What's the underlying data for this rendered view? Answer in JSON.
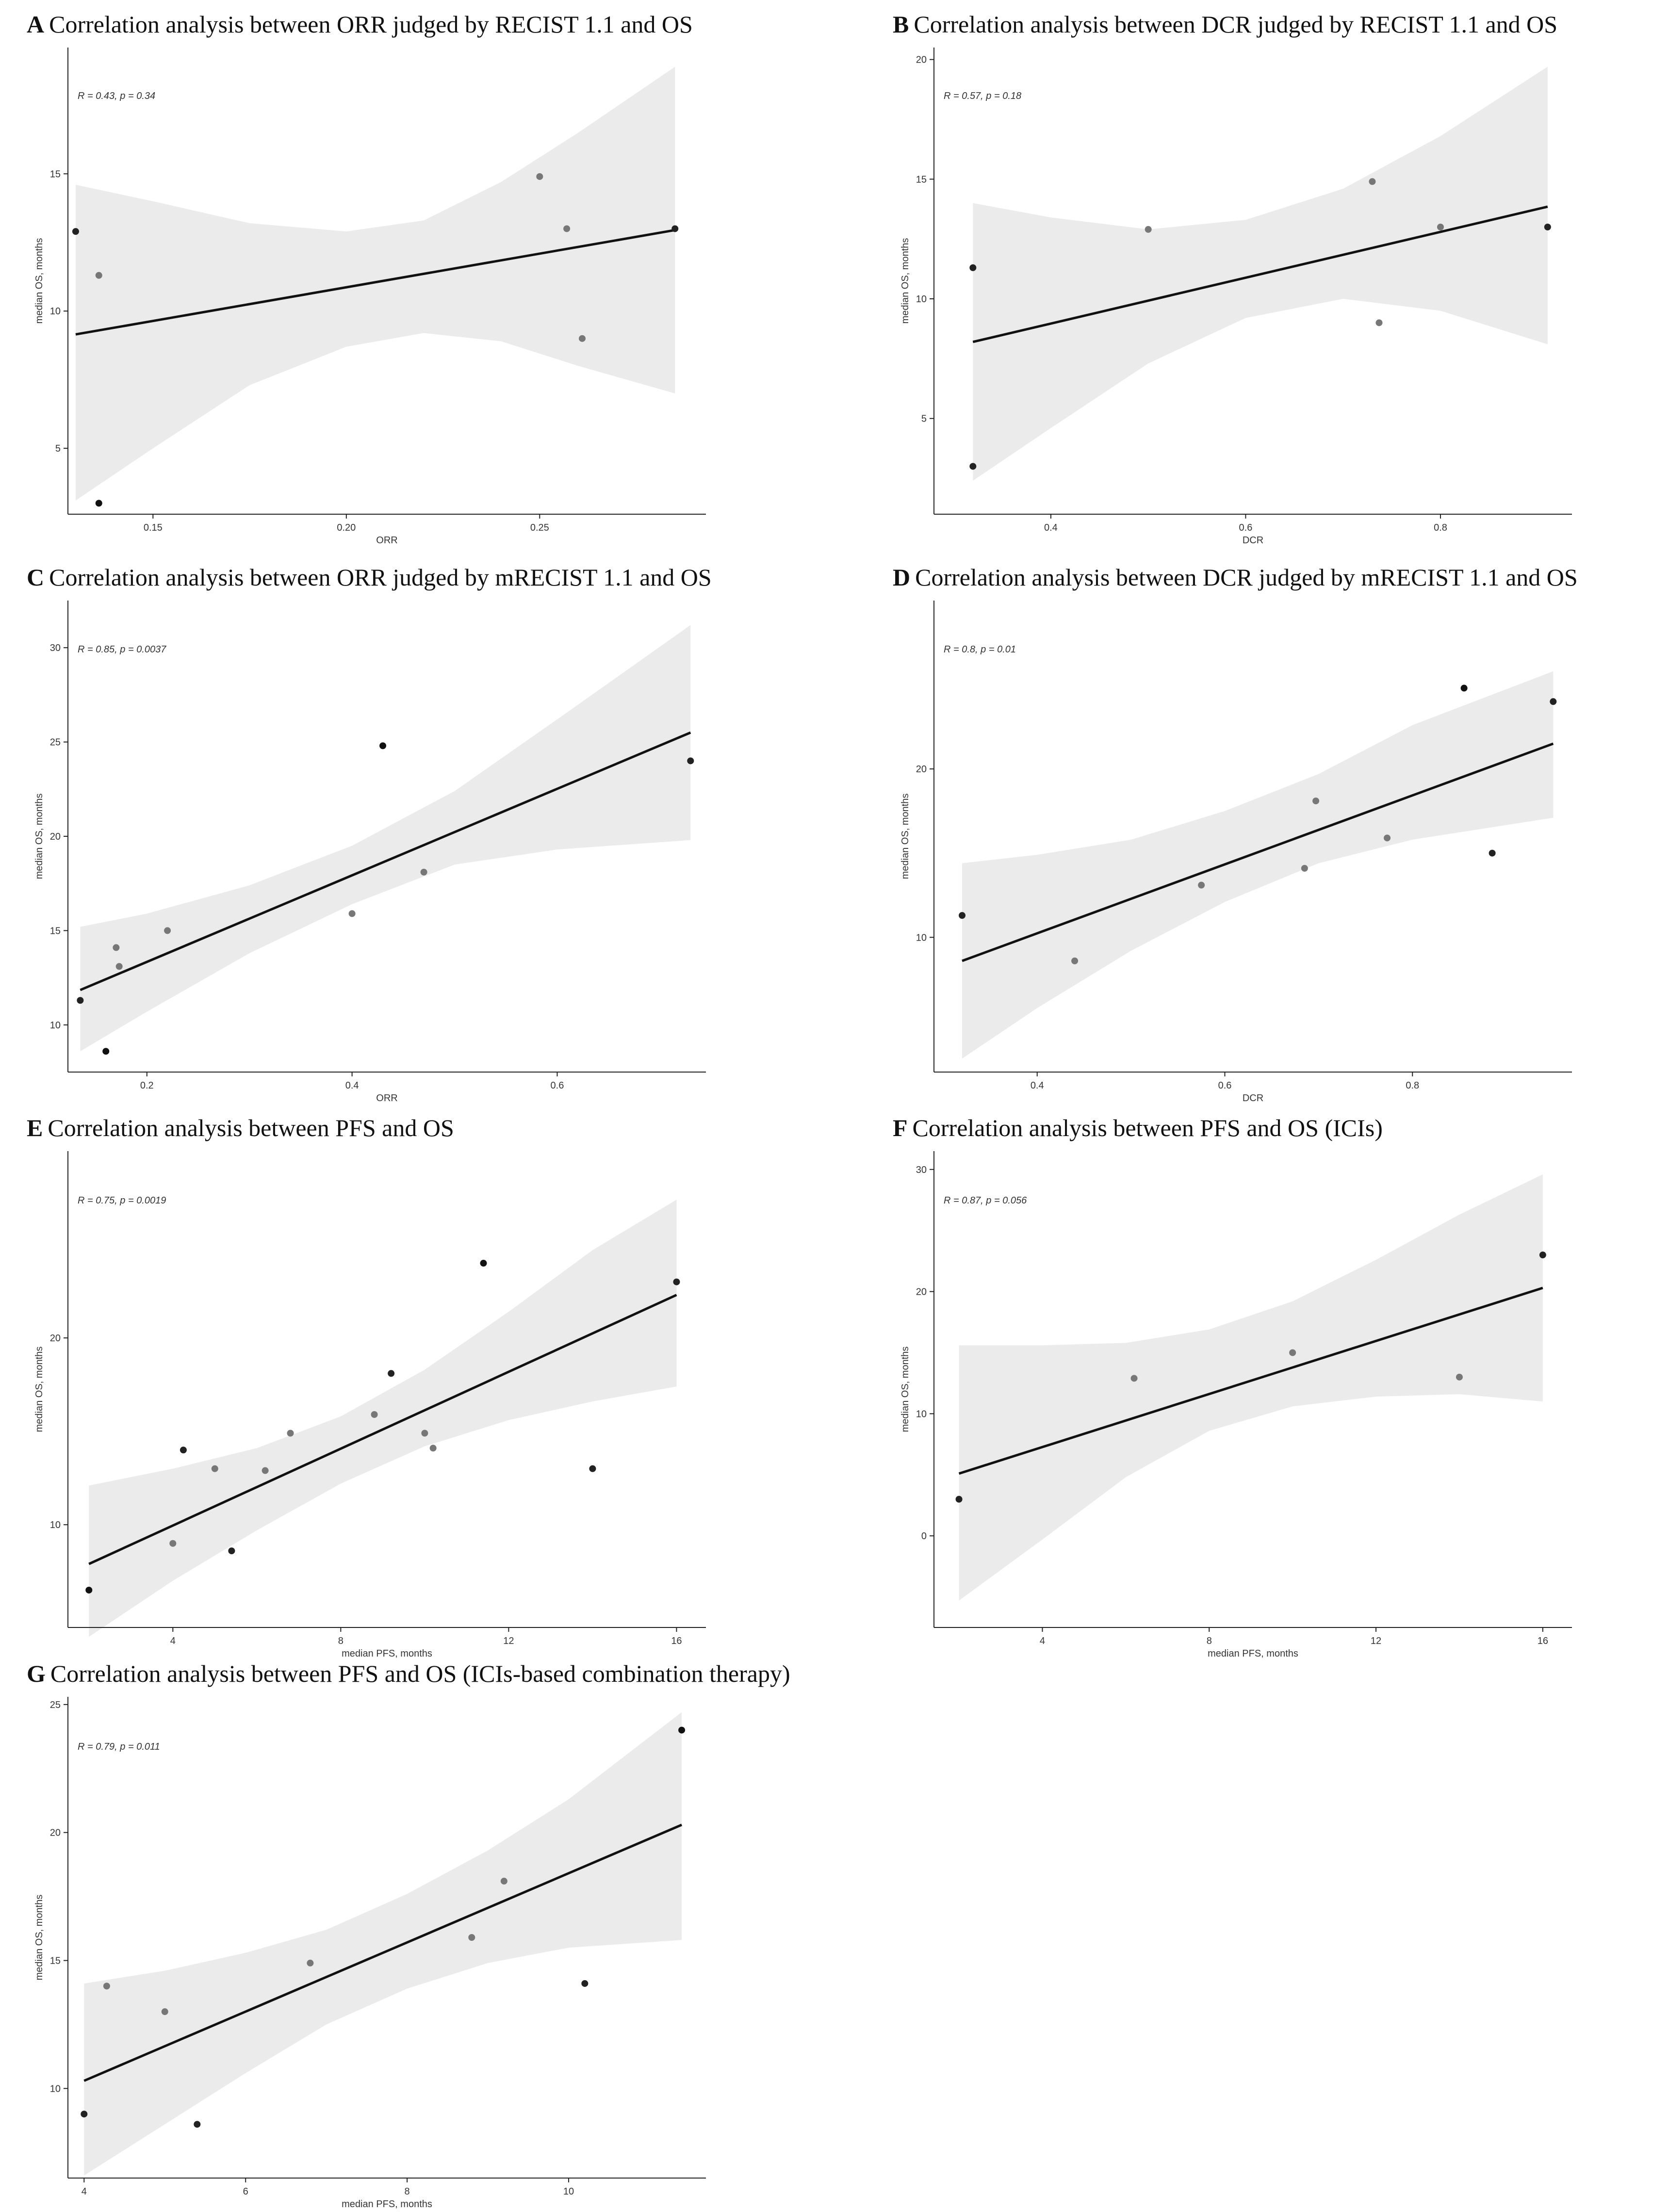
{
  "chart_data": [
    {
      "type": "scatter",
      "panel": "A",
      "title": "Correlation analysis between ORR judged by RECIST 1.1 and OS",
      "xlabel": "ORR",
      "ylabel": "median OS, months",
      "xlim": [
        0.128,
        0.293
      ],
      "ylim": [
        2.6,
        19.6
      ],
      "xticks": [
        0.15,
        0.2,
        0.25
      ],
      "xtick_labels": [
        "0.15",
        "0.20",
        "0.25"
      ],
      "yticks": [
        5,
        10,
        15
      ],
      "ytick_labels": [
        "5",
        "10",
        "15"
      ],
      "annotation": "R = 0.43, p = 0.34",
      "points": [
        {
          "x": 0.13,
          "y": 12.9,
          "shade": "#222222"
        },
        {
          "x": 0.136,
          "y": 11.3,
          "shade": "#777777"
        },
        {
          "x": 0.136,
          "y": 3.0,
          "shade": "#111111"
        },
        {
          "x": 0.25,
          "y": 14.9,
          "shade": "#777777"
        },
        {
          "x": 0.257,
          "y": 13.0,
          "shade": "#777777"
        },
        {
          "x": 0.261,
          "y": 9.0,
          "shade": "#777777"
        },
        {
          "x": 0.285,
          "y": 13.0,
          "shade": "#222222"
        }
      ],
      "fit": [
        {
          "x": 0.13,
          "y": 9.15
        },
        {
          "x": 0.285,
          "y": 12.95
        }
      ],
      "band": [
        {
          "x": 0.13,
          "lo": 3.1,
          "hi": 14.6
        },
        {
          "x": 0.15,
          "lo": 5.0,
          "hi": 14.0
        },
        {
          "x": 0.175,
          "lo": 7.3,
          "hi": 13.2
        },
        {
          "x": 0.2,
          "lo": 8.7,
          "hi": 12.9
        },
        {
          "x": 0.22,
          "lo": 9.2,
          "hi": 13.3
        },
        {
          "x": 0.24,
          "lo": 8.9,
          "hi": 14.7
        },
        {
          "x": 0.26,
          "lo": 8.0,
          "hi": 16.5
        },
        {
          "x": 0.285,
          "lo": 7.0,
          "hi": 18.9
        }
      ]
    },
    {
      "type": "scatter",
      "panel": "B",
      "title": "Correlation analysis between DCR judged by RECIST 1.1 and OS",
      "xlabel": "DCR",
      "ylabel": "median OS, months",
      "xlim": [
        0.28,
        0.935
      ],
      "ylim": [
        1.0,
        20.5
      ],
      "xticks": [
        0.4,
        0.6,
        0.8
      ],
      "xtick_labels": [
        "0.4",
        "0.6",
        "0.8"
      ],
      "yticks": [
        5,
        10,
        15,
        20
      ],
      "ytick_labels": [
        "5",
        "10",
        "15",
        "20"
      ],
      "annotation": "R = 0.57, p = 0.18",
      "points": [
        {
          "x": 0.32,
          "y": 11.3,
          "shade": "#222222"
        },
        {
          "x": 0.32,
          "y": 3.0,
          "shade": "#222222"
        },
        {
          "x": 0.5,
          "y": 12.9,
          "shade": "#777777"
        },
        {
          "x": 0.73,
          "y": 14.9,
          "shade": "#777777"
        },
        {
          "x": 0.737,
          "y": 9.0,
          "shade": "#777777"
        },
        {
          "x": 0.8,
          "y": 13.0,
          "shade": "#777777"
        },
        {
          "x": 0.91,
          "y": 13.0,
          "shade": "#222222"
        }
      ],
      "fit": [
        {
          "x": 0.32,
          "y": 8.2
        },
        {
          "x": 0.91,
          "y": 13.85
        }
      ],
      "band": [
        {
          "x": 0.32,
          "lo": 2.4,
          "hi": 14.0
        },
        {
          "x": 0.4,
          "lo": 4.6,
          "hi": 13.4
        },
        {
          "x": 0.5,
          "lo": 7.3,
          "hi": 12.9
        },
        {
          "x": 0.6,
          "lo": 9.2,
          "hi": 13.3
        },
        {
          "x": 0.7,
          "lo": 10.0,
          "hi": 14.6
        },
        {
          "x": 0.8,
          "lo": 9.5,
          "hi": 16.8
        },
        {
          "x": 0.91,
          "lo": 8.1,
          "hi": 19.7
        }
      ]
    },
    {
      "type": "scatter",
      "panel": "C",
      "title": "Correlation analysis between ORR judged by mRECIST 1.1 and OS",
      "xlabel": "ORR",
      "ylabel": "median OS, months",
      "xlim": [
        0.123,
        0.745
      ],
      "ylim": [
        7.5,
        32.5
      ],
      "xticks": [
        0.2,
        0.4,
        0.6
      ],
      "xtick_labels": [
        "0.2",
        "0.4",
        "0.6"
      ],
      "yticks": [
        10,
        15,
        20,
        25,
        30
      ],
      "ytick_labels": [
        "10",
        "15",
        "20",
        "25",
        "30"
      ],
      "annotation": "R = 0.85, p = 0.0037",
      "points": [
        {
          "x": 0.135,
          "y": 11.3,
          "shade": "#222222"
        },
        {
          "x": 0.16,
          "y": 8.6,
          "shade": "#111111"
        },
        {
          "x": 0.17,
          "y": 14.1,
          "shade": "#777777"
        },
        {
          "x": 0.173,
          "y": 13.1,
          "shade": "#777777"
        },
        {
          "x": 0.22,
          "y": 15.0,
          "shade": "#777777"
        },
        {
          "x": 0.4,
          "y": 15.9,
          "shade": "#777777"
        },
        {
          "x": 0.43,
          "y": 24.8,
          "shade": "#111111"
        },
        {
          "x": 0.47,
          "y": 18.1,
          "shade": "#777777"
        },
        {
          "x": 0.73,
          "y": 24.0,
          "shade": "#222222"
        }
      ],
      "fit": [
        {
          "x": 0.135,
          "y": 11.85
        },
        {
          "x": 0.73,
          "y": 25.5
        }
      ],
      "band": [
        {
          "x": 0.135,
          "lo": 8.6,
          "hi": 15.2
        },
        {
          "x": 0.2,
          "lo": 10.7,
          "hi": 15.9
        },
        {
          "x": 0.3,
          "lo": 13.8,
          "hi": 17.4
        },
        {
          "x": 0.4,
          "lo": 16.4,
          "hi": 19.5
        },
        {
          "x": 0.5,
          "lo": 18.5,
          "hi": 22.4
        },
        {
          "x": 0.6,
          "lo": 19.3,
          "hi": 26.2
        },
        {
          "x": 0.73,
          "lo": 19.8,
          "hi": 31.2
        }
      ]
    },
    {
      "type": "scatter",
      "panel": "D",
      "title": "Correlation analysis between DCR judged by mRECIST 1.1 and OS",
      "xlabel": "DCR",
      "ylabel": "median OS, months",
      "xlim": [
        0.29,
        0.97
      ],
      "ylim": [
        2.0,
        30.0
      ],
      "xticks": [
        0.4,
        0.6,
        0.8
      ],
      "xtick_labels": [
        "0.4",
        "0.6",
        "0.8"
      ],
      "yticks": [
        10,
        20
      ],
      "ytick_labels": [
        "10",
        "20"
      ],
      "annotation": "R = 0.8, p = 0.01",
      "points": [
        {
          "x": 0.32,
          "y": 11.3,
          "shade": "#222222"
        },
        {
          "x": 0.44,
          "y": 8.6,
          "shade": "#777777"
        },
        {
          "x": 0.575,
          "y": 13.1,
          "shade": "#777777"
        },
        {
          "x": 0.685,
          "y": 14.1,
          "shade": "#777777"
        },
        {
          "x": 0.697,
          "y": 18.1,
          "shade": "#777777"
        },
        {
          "x": 0.773,
          "y": 15.9,
          "shade": "#777777"
        },
        {
          "x": 0.855,
          "y": 24.8,
          "shade": "#111111"
        },
        {
          "x": 0.885,
          "y": 15.0,
          "shade": "#222222"
        },
        {
          "x": 0.95,
          "y": 24.0,
          "shade": "#222222"
        }
      ],
      "fit": [
        {
          "x": 0.32,
          "y": 8.6
        },
        {
          "x": 0.95,
          "y": 21.5
        }
      ],
      "band": [
        {
          "x": 0.32,
          "lo": 2.8,
          "hi": 14.4
        },
        {
          "x": 0.4,
          "lo": 5.8,
          "hi": 14.9
        },
        {
          "x": 0.5,
          "lo": 9.2,
          "hi": 15.8
        },
        {
          "x": 0.6,
          "lo": 12.1,
          "hi": 17.5
        },
        {
          "x": 0.7,
          "lo": 14.4,
          "hi": 19.7
        },
        {
          "x": 0.8,
          "lo": 15.8,
          "hi": 22.6
        },
        {
          "x": 0.95,
          "lo": 17.1,
          "hi": 25.8
        }
      ]
    },
    {
      "type": "scatter",
      "panel": "E",
      "title": "Correlation analysis between PFS and OS",
      "xlabel": "median PFS, months",
      "ylabel": "median OS, months",
      "xlim": [
        1.5,
        16.7
      ],
      "ylim": [
        4.5,
        30.0
      ],
      "xticks": [
        4,
        8,
        12,
        16
      ],
      "xtick_labels": [
        "4",
        "8",
        "12",
        "16"
      ],
      "yticks": [
        10,
        20
      ],
      "ytick_labels": [
        "10",
        "20"
      ],
      "annotation": "R = 0.75, p = 0.0019",
      "points": [
        {
          "x": 2.0,
          "y": 6.5,
          "shade": "#111111"
        },
        {
          "x": 4.0,
          "y": 9.0,
          "shade": "#777777"
        },
        {
          "x": 4.25,
          "y": 14.0,
          "shade": "#222222"
        },
        {
          "x": 5.0,
          "y": 13.0,
          "shade": "#777777"
        },
        {
          "x": 5.4,
          "y": 8.6,
          "shade": "#222222"
        },
        {
          "x": 6.2,
          "y": 12.9,
          "shade": "#777777"
        },
        {
          "x": 6.8,
          "y": 14.9,
          "shade": "#777777"
        },
        {
          "x": 8.8,
          "y": 15.9,
          "shade": "#777777"
        },
        {
          "x": 9.2,
          "y": 18.1,
          "shade": "#222222"
        },
        {
          "x": 10.0,
          "y": 14.9,
          "shade": "#777777"
        },
        {
          "x": 10.2,
          "y": 14.1,
          "shade": "#777777"
        },
        {
          "x": 11.4,
          "y": 24.0,
          "shade": "#111111"
        },
        {
          "x": 14.0,
          "y": 13.0,
          "shade": "#222222"
        },
        {
          "x": 16.0,
          "y": 23.0,
          "shade": "#222222"
        }
      ],
      "fit": [
        {
          "x": 2.0,
          "y": 7.9
        },
        {
          "x": 16.0,
          "y": 22.3
        }
      ],
      "band": [
        {
          "x": 2.0,
          "lo": 4.0,
          "hi": 12.1
        },
        {
          "x": 4.0,
          "lo": 7.0,
          "hi": 13.0
        },
        {
          "x": 6.0,
          "lo": 9.7,
          "hi": 14.1
        },
        {
          "x": 8.0,
          "lo": 12.2,
          "hi": 15.8
        },
        {
          "x": 10.0,
          "lo": 14.2,
          "hi": 18.3
        },
        {
          "x": 12.0,
          "lo": 15.6,
          "hi": 21.4
        },
        {
          "x": 14.0,
          "lo": 16.6,
          "hi": 24.7
        },
        {
          "x": 16.0,
          "lo": 17.4,
          "hi": 27.4
        }
      ]
    },
    {
      "type": "scatter",
      "panel": "F",
      "title": "Correlation analysis between PFS and OS (ICIs)",
      "xlabel": "median PFS, months",
      "ylabel": "median OS, months",
      "xlim": [
        1.4,
        16.7
      ],
      "ylim": [
        -7.5,
        31.5
      ],
      "xticks": [
        4,
        8,
        12,
        16
      ],
      "xtick_labels": [
        "4",
        "8",
        "12",
        "16"
      ],
      "yticks": [
        0,
        10,
        20,
        30
      ],
      "ytick_labels": [
        "0",
        "10",
        "20",
        "30"
      ],
      "annotation": "R = 0.87, p = 0.056",
      "points": [
        {
          "x": 2.0,
          "y": 3.0,
          "shade": "#222222"
        },
        {
          "x": 6.2,
          "y": 12.9,
          "shade": "#777777"
        },
        {
          "x": 10.0,
          "y": 15.0,
          "shade": "#777777"
        },
        {
          "x": 14.0,
          "y": 13.0,
          "shade": "#777777"
        },
        {
          "x": 16.0,
          "y": 23.0,
          "shade": "#222222"
        }
      ],
      "fit": [
        {
          "x": 2.0,
          "y": 5.1
        },
        {
          "x": 16.0,
          "y": 20.3
        }
      ],
      "band": [
        {
          "x": 2.0,
          "lo": -5.3,
          "hi": 15.6
        },
        {
          "x": 4.0,
          "lo": -0.3,
          "hi": 15.6
        },
        {
          "x": 6.0,
          "lo": 4.8,
          "hi": 15.8
        },
        {
          "x": 8.0,
          "lo": 8.6,
          "hi": 16.9
        },
        {
          "x": 10.0,
          "lo": 10.6,
          "hi": 19.2
        },
        {
          "x": 12.0,
          "lo": 11.4,
          "hi": 22.6
        },
        {
          "x": 14.0,
          "lo": 11.6,
          "hi": 26.3
        },
        {
          "x": 16.0,
          "lo": 11.0,
          "hi": 29.6
        }
      ]
    },
    {
      "type": "scatter",
      "panel": "G",
      "title": "Correlation analysis between PFS and OS (ICIs-based combination therapy)",
      "xlabel": "median PFS, months",
      "ylabel": "median OS, months",
      "xlim": [
        3.8,
        11.7
      ],
      "ylim": [
        6.5,
        25.3
      ],
      "xticks": [
        4,
        6,
        8,
        10
      ],
      "xtick_labels": [
        "4",
        "6",
        "8",
        "10"
      ],
      "yticks": [
        10,
        15,
        20,
        25
      ],
      "ytick_labels": [
        "10",
        "15",
        "20",
        "25"
      ],
      "annotation": "R = 0.79, p = 0.011",
      "points": [
        {
          "x": 4.0,
          "y": 9.0,
          "shade": "#222222"
        },
        {
          "x": 4.28,
          "y": 14.0,
          "shade": "#777777"
        },
        {
          "x": 5.0,
          "y": 13.0,
          "shade": "#777777"
        },
        {
          "x": 5.4,
          "y": 8.6,
          "shade": "#222222"
        },
        {
          "x": 6.8,
          "y": 14.9,
          "shade": "#777777"
        },
        {
          "x": 8.8,
          "y": 15.9,
          "shade": "#777777"
        },
        {
          "x": 9.2,
          "y": 18.1,
          "shade": "#777777"
        },
        {
          "x": 10.2,
          "y": 14.1,
          "shade": "#222222"
        },
        {
          "x": 11.4,
          "y": 24.0,
          "shade": "#111111"
        }
      ],
      "fit": [
        {
          "x": 4.0,
          "y": 10.3
        },
        {
          "x": 11.4,
          "y": 20.3
        }
      ],
      "band": [
        {
          "x": 4.0,
          "lo": 6.6,
          "hi": 14.1
        },
        {
          "x": 5.0,
          "lo": 8.6,
          "hi": 14.6
        },
        {
          "x": 6.0,
          "lo": 10.6,
          "hi": 15.3
        },
        {
          "x": 7.0,
          "lo": 12.5,
          "hi": 16.2
        },
        {
          "x": 8.0,
          "lo": 13.9,
          "hi": 17.6
        },
        {
          "x": 9.0,
          "lo": 14.9,
          "hi": 19.3
        },
        {
          "x": 10.0,
          "lo": 15.5,
          "hi": 21.3
        },
        {
          "x": 11.4,
          "lo": 15.8,
          "hi": 24.7
        }
      ]
    }
  ]
}
